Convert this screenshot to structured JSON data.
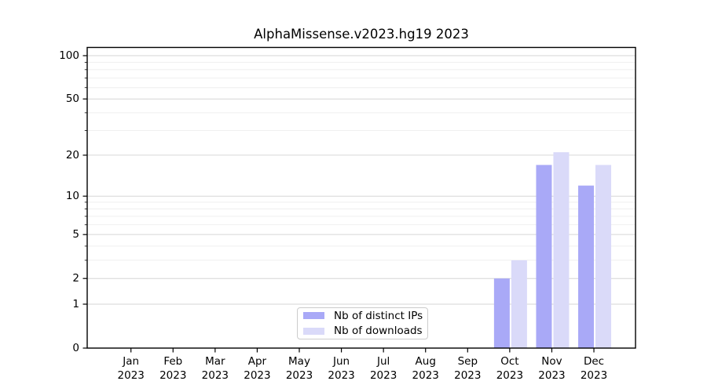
{
  "chart_data": {
    "type": "bar",
    "title": "AlphaMissense.v2023.hg19 2023",
    "categories": [
      "Jan 2023",
      "Feb 2023",
      "Mar 2023",
      "Apr 2023",
      "May 2023",
      "Jun 2023",
      "Jul 2023",
      "Aug 2023",
      "Sep 2023",
      "Oct 2023",
      "Nov 2023",
      "Dec 2023"
    ],
    "series": [
      {
        "name": "Nb of distinct IPs",
        "color": "#a9a9f7",
        "values": [
          0,
          0,
          0,
          0,
          0,
          0,
          0,
          0,
          0,
          2,
          17,
          12
        ]
      },
      {
        "name": "Nb of downloads",
        "color": "#dadaf9",
        "values": [
          0,
          0,
          0,
          0,
          0,
          0,
          0,
          0,
          0,
          3,
          21,
          17
        ]
      }
    ],
    "yscale": "log1p",
    "ylim": [
      0,
      114
    ],
    "y_major_ticks": [
      0,
      1,
      2,
      5,
      10,
      20,
      50,
      100
    ],
    "y_minor_ticks": [
      3,
      4,
      6,
      7,
      8,
      9,
      30,
      40,
      60,
      70,
      80,
      90
    ],
    "grid": true,
    "legend_position": "lower center"
  },
  "styles": {
    "background": "#ffffff",
    "spine_color": "#000000",
    "grid_major_color": "#d6d6d6",
    "grid_minor_color": "#eeeeee",
    "tick_color": "#000000",
    "text_color": "#000000",
    "legend_border_color": "#cccccc"
  }
}
